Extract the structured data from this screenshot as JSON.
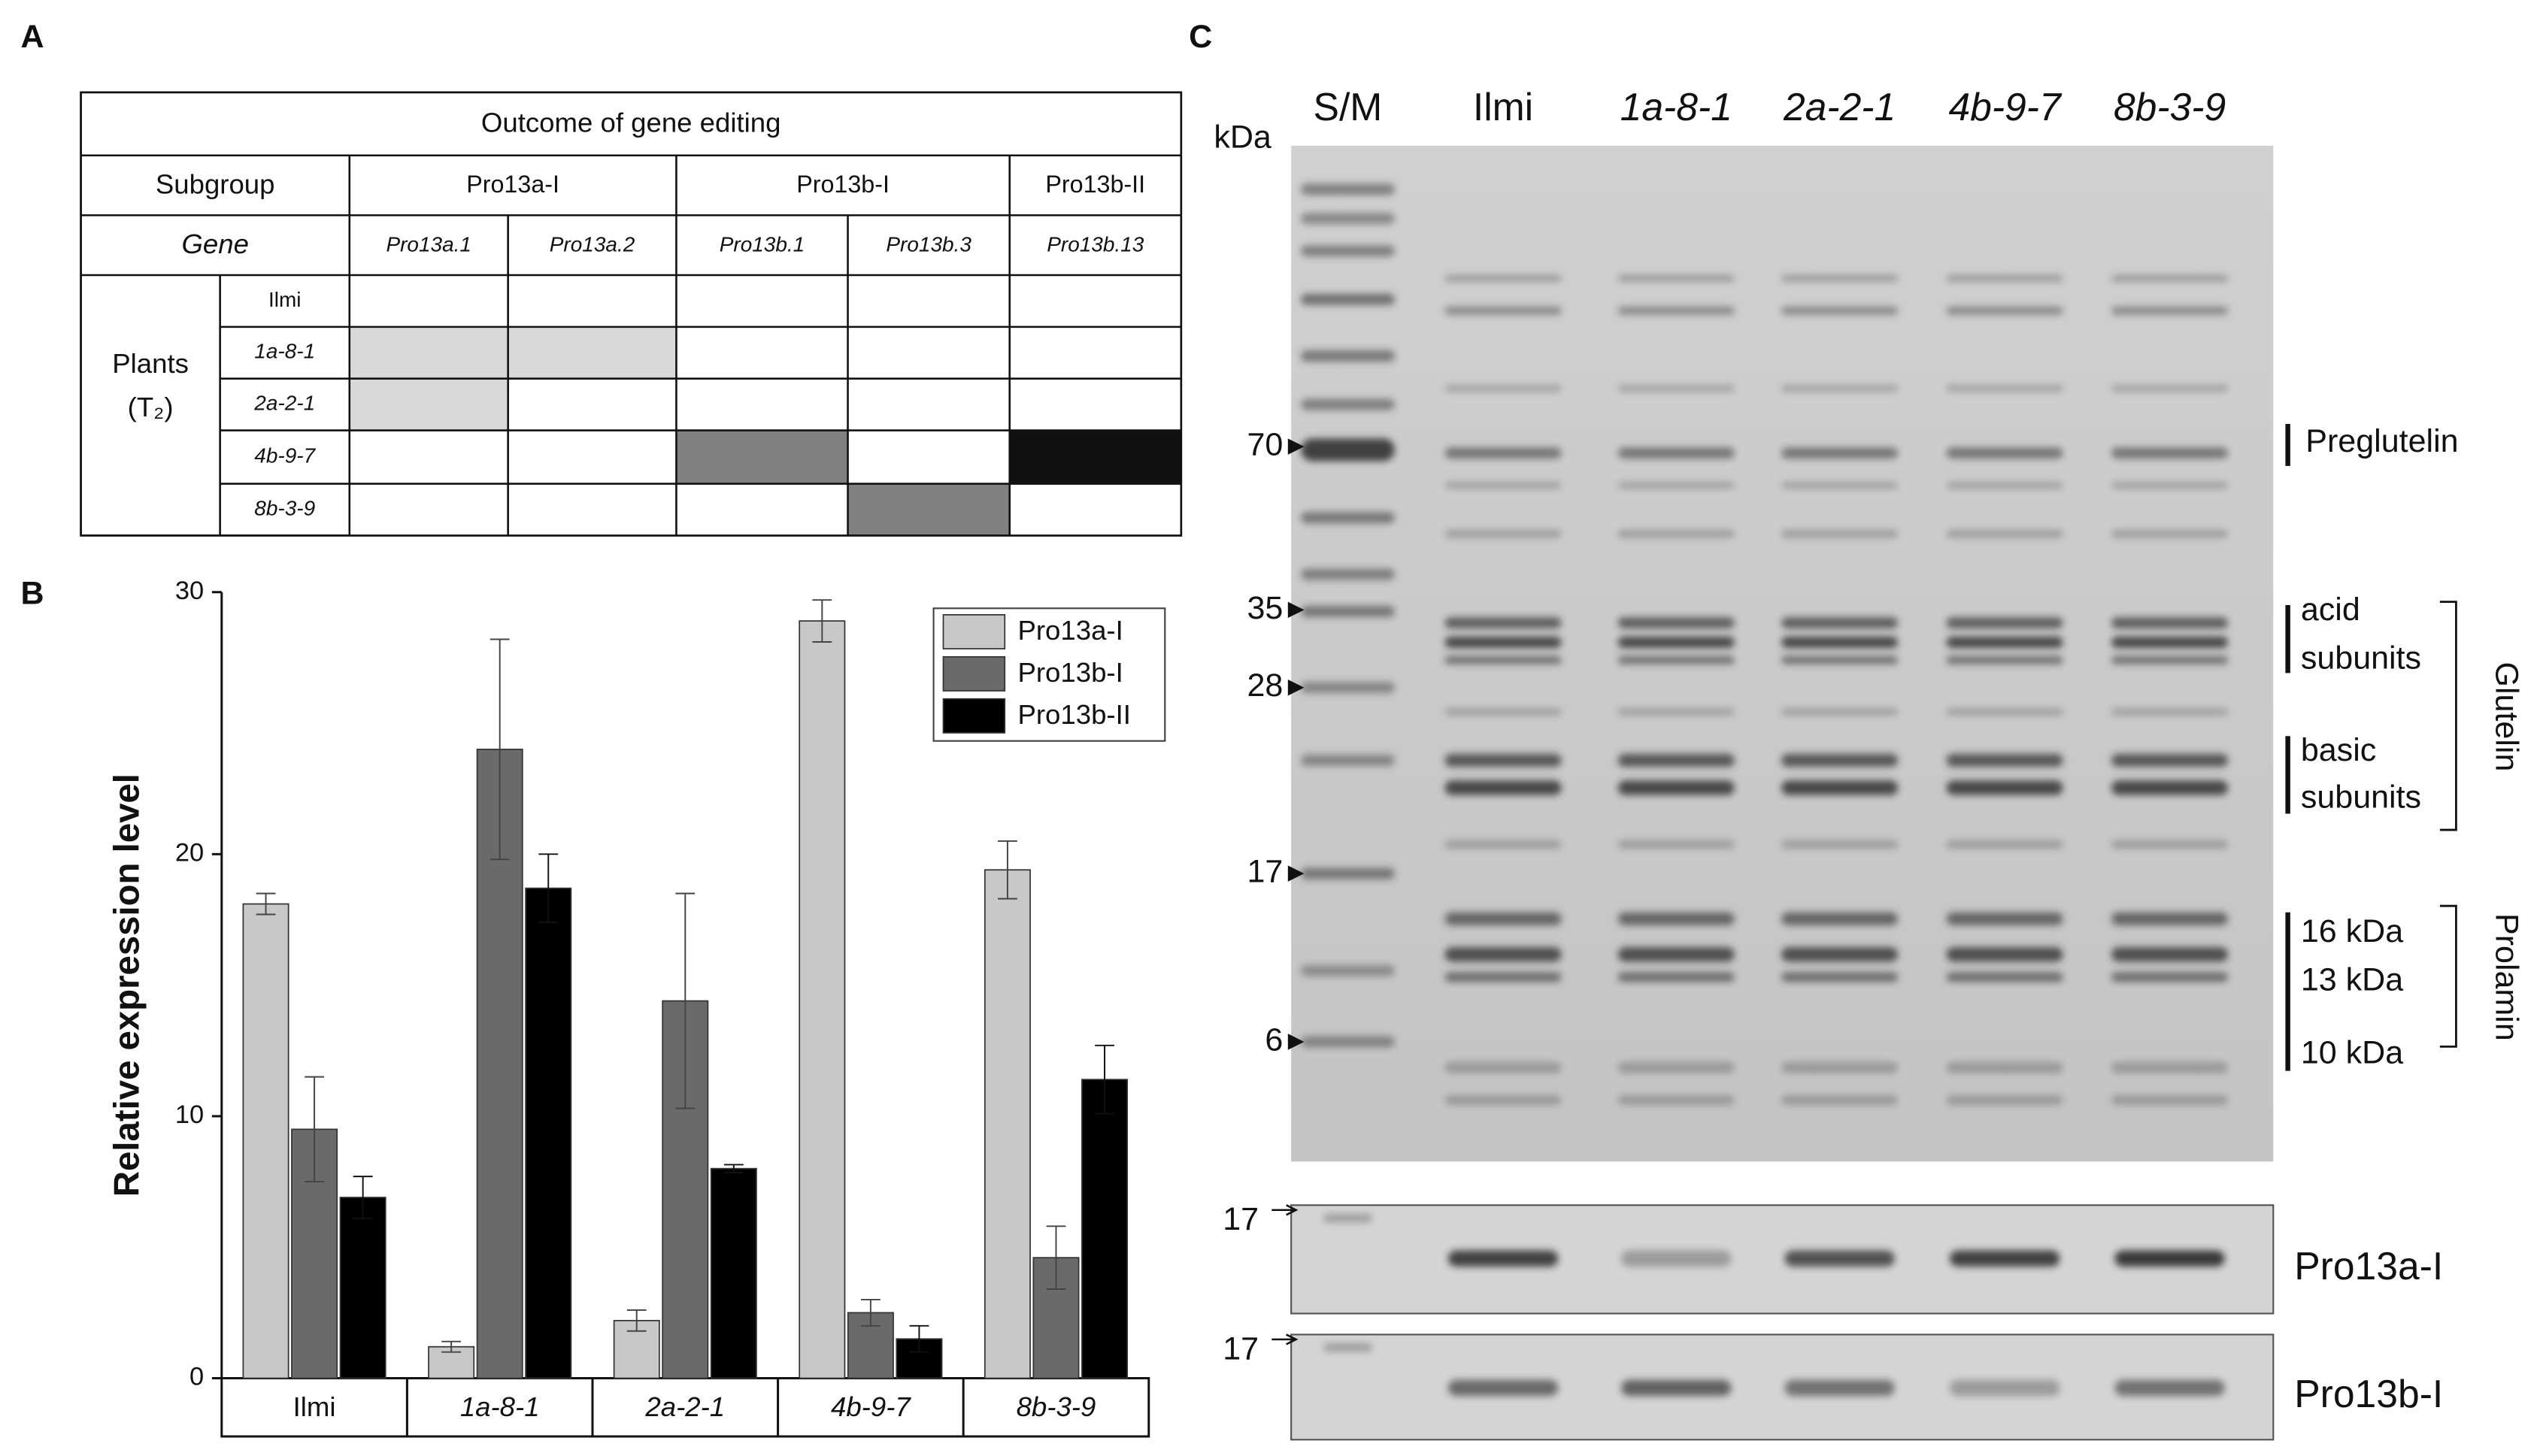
{
  "panel_a": {
    "label": "A",
    "title": "Outcome of gene editing",
    "subgroup_header": "Subgroup",
    "subgroups": [
      "Pro13a-I",
      "Pro13b-I",
      "Pro13b-II"
    ],
    "gene_header": "Gene",
    "genes": [
      "Pro13a.1",
      "Pro13a.2",
      "Pro13b.1",
      "Pro13b.3",
      "Pro13b.13"
    ],
    "plants_label": "Plants",
    "plants_generation": "(T₂)",
    "rows": [
      {
        "plant": "Ilmi",
        "fills": [
          "#ffffff",
          "#ffffff",
          "#ffffff",
          "#ffffff",
          "#ffffff"
        ]
      },
      {
        "plant": "1a-8-1",
        "fills": [
          "#d9d9d9",
          "#d9d9d9",
          "#ffffff",
          "#ffffff",
          "#ffffff"
        ]
      },
      {
        "plant": "2a-2-1",
        "fills": [
          "#d9d9d9",
          "#ffffff",
          "#ffffff",
          "#ffffff",
          "#ffffff"
        ]
      },
      {
        "plant": "4b-9-7",
        "fills": [
          "#ffffff",
          "#ffffff",
          "#808080",
          "#ffffff",
          "#111111"
        ]
      },
      {
        "plant": "8b-3-9",
        "fills": [
          "#ffffff",
          "#ffffff",
          "#ffffff",
          "#808080",
          "#ffffff"
        ]
      }
    ]
  },
  "chart_data": {
    "type": "bar",
    "label": "B",
    "y_label": "Relative expression level",
    "categories": [
      "Ilmi",
      "1a-8-1",
      "2a-2-1",
      "4b-9-7",
      "8b-3-9"
    ],
    "series": [
      {
        "name": "Pro13a-I",
        "color": "#c8c8c8",
        "values": [
          18.1,
          1.2,
          2.2,
          28.9,
          19.4
        ],
        "errors": [
          0.4,
          0.2,
          0.4,
          0.8,
          1.1
        ]
      },
      {
        "name": "Pro13b-I",
        "color": "#6a6a6a",
        "values": [
          9.5,
          24.0,
          14.4,
          2.5,
          4.6
        ],
        "errors": [
          2.0,
          4.2,
          4.1,
          0.5,
          1.2
        ]
      },
      {
        "name": "Pro13b-II",
        "color": "#000000",
        "values": [
          6.9,
          18.7,
          8.0,
          1.5,
          11.4
        ],
        "errors": [
          0.8,
          1.3,
          0.15,
          0.5,
          1.3
        ]
      }
    ],
    "ylim": [
      0,
      30
    ],
    "yticks": [
      0,
      10,
      20,
      30
    ],
    "legend": "upper right"
  },
  "panel_c": {
    "label": "C",
    "unit": "kDa",
    "lanes": [
      "S/M",
      "Ilmi",
      "1a-8-1",
      "2a-2-1",
      "4b-9-7",
      "8b-3-9"
    ],
    "markers": [
      70,
      35,
      28,
      17,
      6
    ],
    "annotations": [
      "Preglutelin",
      "acid",
      "subunits",
      "basic",
      "subunits",
      "Glutelin",
      "16 kDa",
      "13 kDa",
      "10 kDa",
      "Prolamin"
    ],
    "blots": [
      {
        "marker": 17,
        "name": "Pro13a-I"
      },
      {
        "marker": 17,
        "name": "Pro13b-I"
      }
    ]
  }
}
